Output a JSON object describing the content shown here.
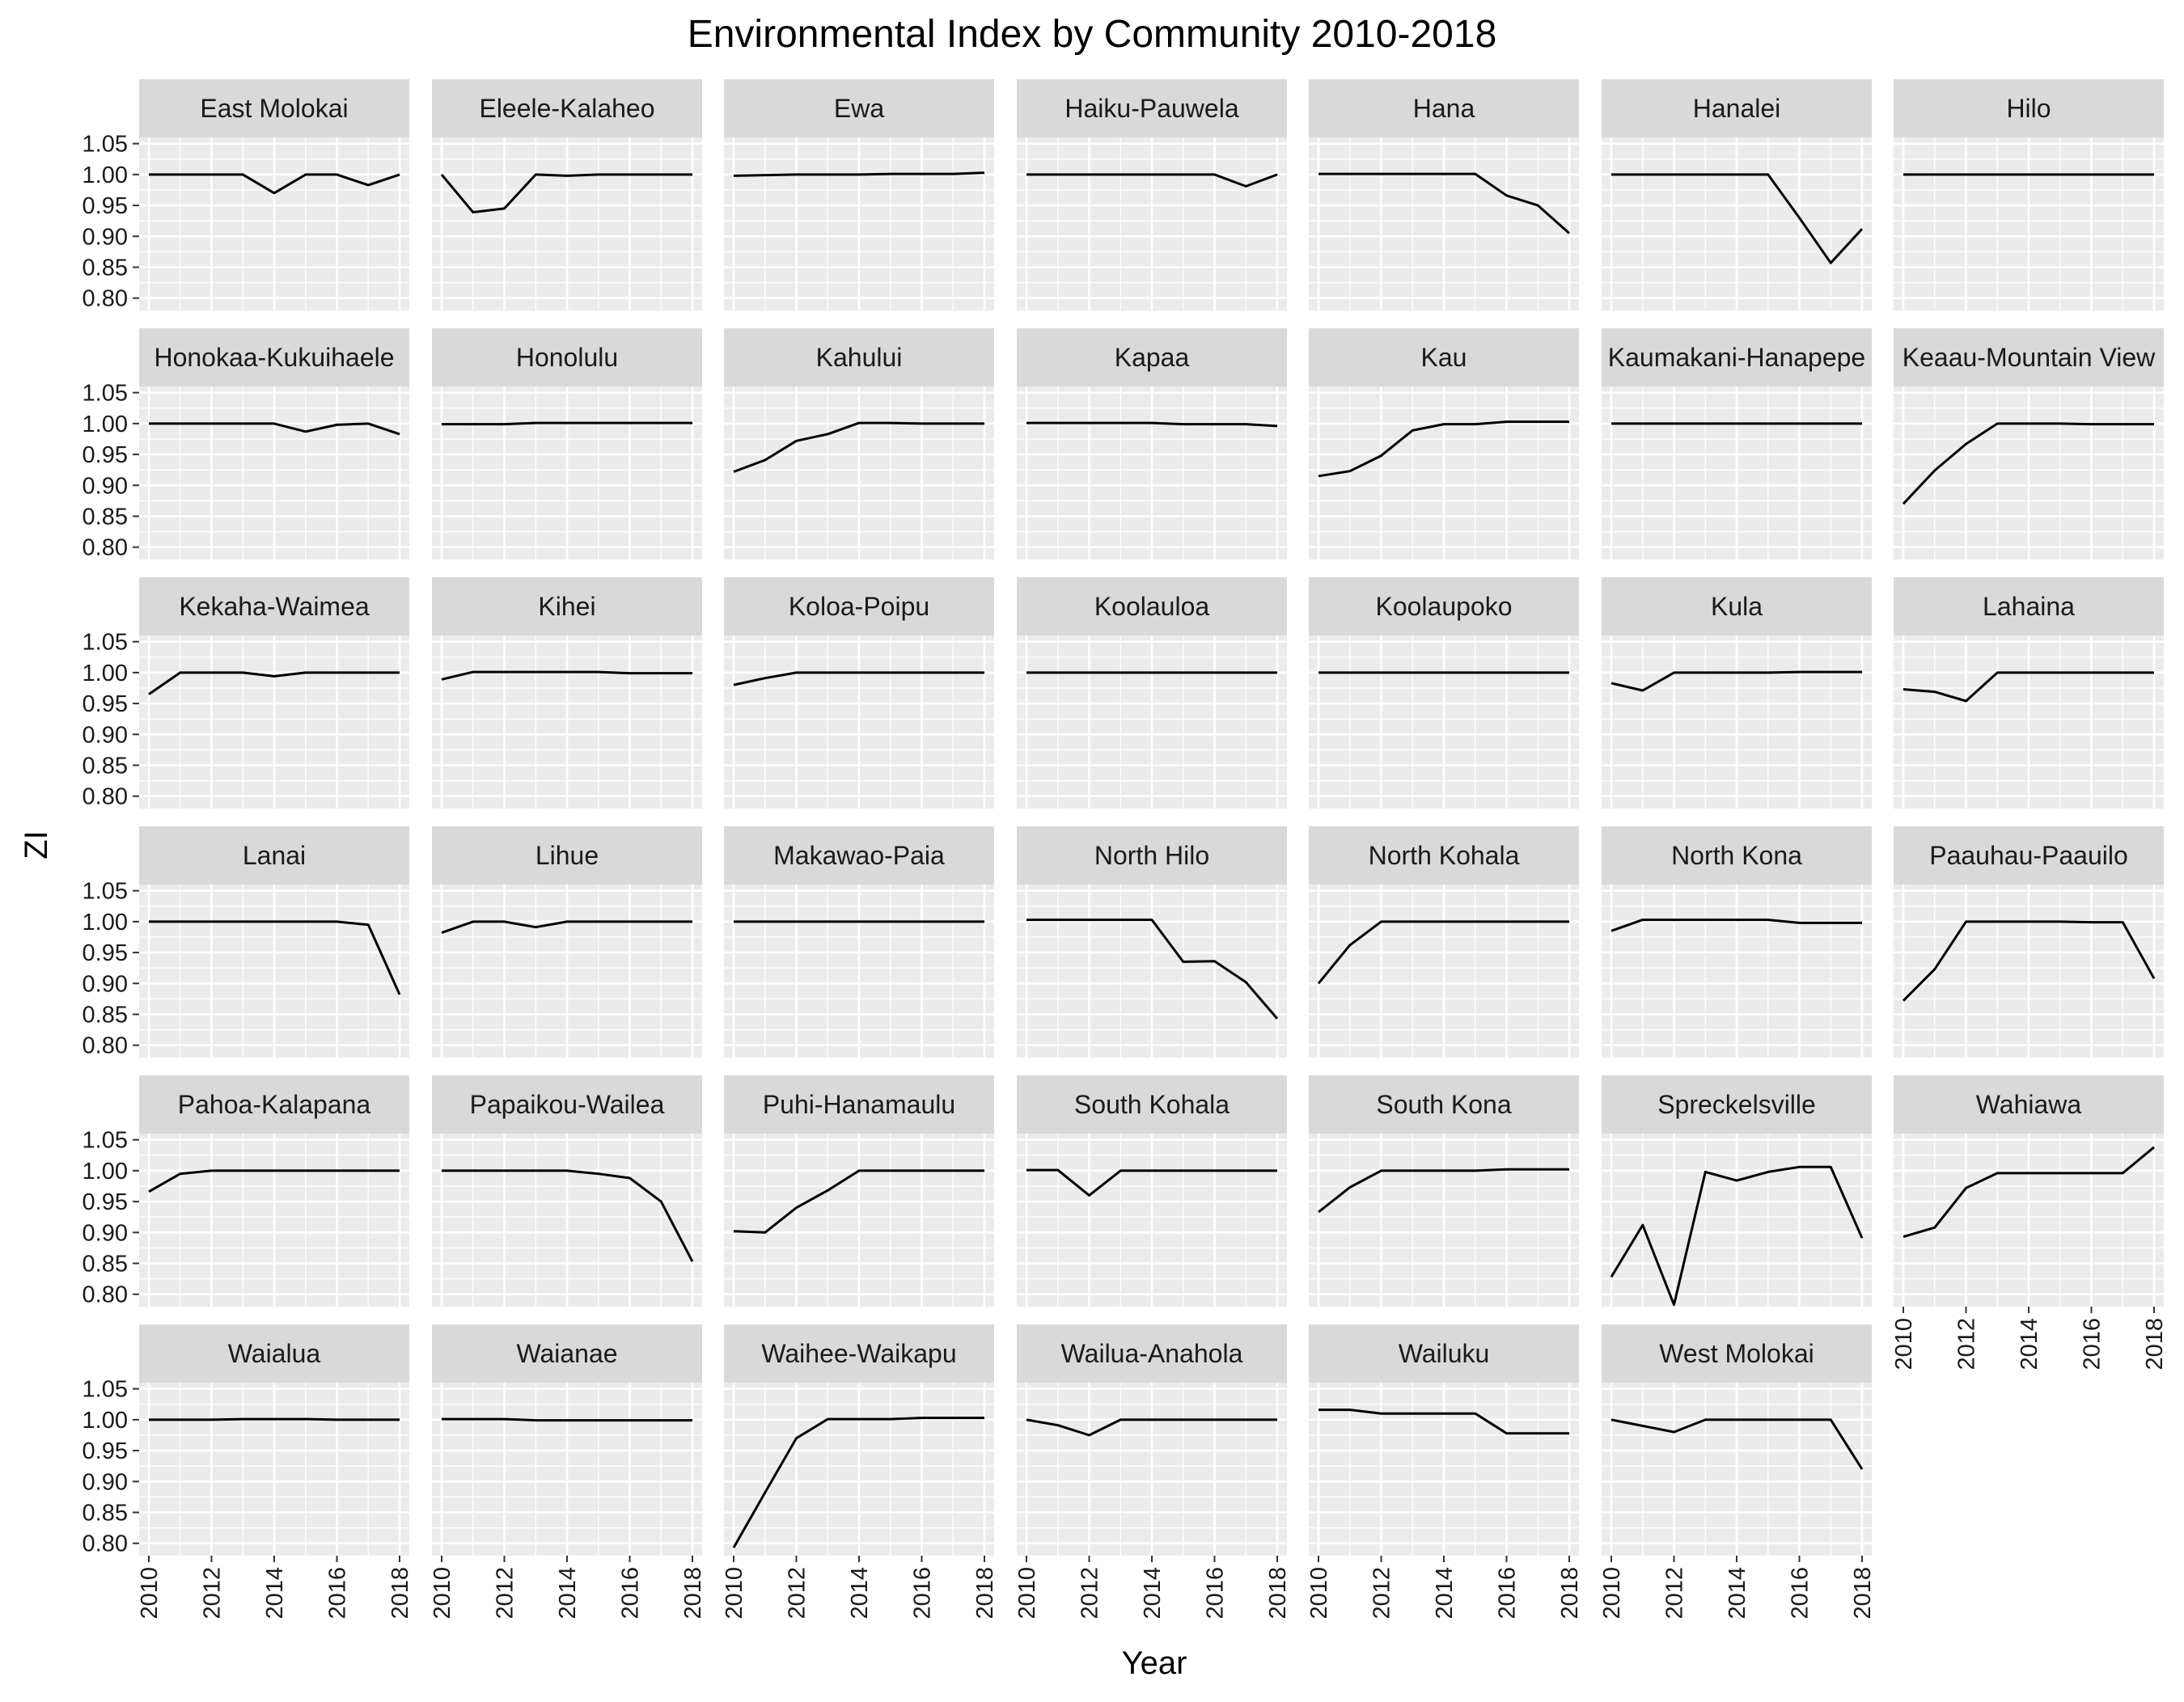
{
  "chart_data": {
    "type": "line",
    "title": "Environmental Index by Community 2010-2018",
    "xlabel": "Year",
    "ylabel": "ZI",
    "ylim": [
      0.78,
      1.06
    ],
    "xlim": [
      2010,
      2018
    ],
    "x": [
      2010,
      2011,
      2012,
      2013,
      2014,
      2015,
      2016,
      2017,
      2018
    ],
    "x_ticks": [
      2010,
      2012,
      2014,
      2016,
      2018
    ],
    "x_tick_labels": [
      "2010",
      "2012",
      "2014",
      "2016",
      "2018"
    ],
    "y_ticks": [
      0.8,
      0.85,
      0.9,
      0.95,
      1.0,
      1.05
    ],
    "y_tick_labels": [
      "0.80",
      "0.85",
      "0.90",
      "0.95",
      "1.00",
      "1.05"
    ],
    "grid": true,
    "facets": [
      {
        "name": "East Molokai",
        "values": [
          1.0,
          1.0,
          1.0,
          1.0,
          0.97,
          1.0,
          1.0,
          0.983,
          1.0
        ]
      },
      {
        "name": "Eleele-Kalaheo",
        "values": [
          1.0,
          0.939,
          0.945,
          1.0,
          0.998,
          1.0,
          1.0,
          1.0,
          1.0
        ]
      },
      {
        "name": "Ewa",
        "values": [
          0.998,
          0.999,
          1.0,
          1.0,
          1.0,
          1.001,
          1.001,
          1.001,
          1.003
        ]
      },
      {
        "name": "Haiku-Pauwela",
        "values": [
          1.0,
          1.0,
          1.0,
          1.0,
          1.0,
          1.0,
          1.0,
          0.981,
          1.0
        ]
      },
      {
        "name": "Hana",
        "values": [
          1.001,
          1.001,
          1.001,
          1.001,
          1.001,
          1.001,
          0.966,
          0.95,
          0.905
        ]
      },
      {
        "name": "Hanalei",
        "values": [
          1.0,
          1.0,
          1.0,
          1.0,
          1.0,
          1.0,
          0.93,
          0.857,
          0.912
        ]
      },
      {
        "name": "Hilo",
        "values": [
          1.0,
          1.0,
          1.0,
          1.0,
          1.0,
          1.0,
          1.0,
          1.0,
          1.0
        ]
      },
      {
        "name": "Honokaa-Kukuihaele",
        "values": [
          1.0,
          1.0,
          1.0,
          1.0,
          1.0,
          0.987,
          0.998,
          1.0,
          0.983
        ]
      },
      {
        "name": "Honolulu",
        "values": [
          0.999,
          0.999,
          0.999,
          1.001,
          1.001,
          1.001,
          1.001,
          1.001,
          1.001
        ]
      },
      {
        "name": "Kahului",
        "values": [
          0.922,
          0.941,
          0.972,
          0.983,
          1.001,
          1.001,
          1.0,
          1.0,
          1.0
        ]
      },
      {
        "name": "Kapaa",
        "values": [
          1.001,
          1.001,
          1.001,
          1.001,
          1.001,
          0.999,
          0.999,
          0.999,
          0.996
        ]
      },
      {
        "name": "Kau",
        "values": [
          0.915,
          0.923,
          0.948,
          0.989,
          0.999,
          0.999,
          1.003,
          1.003,
          1.003
        ]
      },
      {
        "name": "Kaumakani-Hanapepe",
        "values": [
          1.0,
          1.0,
          1.0,
          1.0,
          1.0,
          1.0,
          1.0,
          1.0,
          1.0
        ]
      },
      {
        "name": "Keaau-Mountain View",
        "values": [
          0.87,
          0.924,
          0.967,
          1.0,
          1.0,
          1.0,
          0.999,
          0.999,
          0.999
        ]
      },
      {
        "name": "Kekaha-Waimea",
        "values": [
          0.965,
          1.0,
          1.0,
          1.0,
          0.994,
          1.0,
          1.0,
          1.0,
          1.0
        ]
      },
      {
        "name": "Kihei",
        "values": [
          0.989,
          1.001,
          1.001,
          1.001,
          1.001,
          1.001,
          0.999,
          0.999,
          0.999
        ]
      },
      {
        "name": "Koloa-Poipu",
        "values": [
          0.98,
          0.991,
          1.0,
          1.0,
          1.0,
          1.0,
          1.0,
          1.0,
          1.0
        ]
      },
      {
        "name": "Koolauloa",
        "values": [
          1.0,
          1.0,
          1.0,
          1.0,
          1.0,
          1.0,
          1.0,
          1.0,
          1.0
        ]
      },
      {
        "name": "Koolaupoko",
        "values": [
          1.0,
          1.0,
          1.0,
          1.0,
          1.0,
          1.0,
          1.0,
          1.0,
          1.0
        ]
      },
      {
        "name": "Kula",
        "values": [
          0.983,
          0.971,
          1.0,
          1.0,
          1.0,
          1.0,
          1.001,
          1.001,
          1.001
        ]
      },
      {
        "name": "Lahaina",
        "values": [
          0.973,
          0.969,
          0.954,
          1.0,
          1.0,
          1.0,
          1.0,
          1.0,
          1.0
        ]
      },
      {
        "name": "Lanai",
        "values": [
          1.0,
          1.0,
          1.0,
          1.0,
          1.0,
          1.0,
          1.0,
          0.995,
          0.882
        ]
      },
      {
        "name": "Lihue",
        "values": [
          0.982,
          1.0,
          1.0,
          0.991,
          1.0,
          1.0,
          1.0,
          1.0,
          1.0
        ]
      },
      {
        "name": "Makawao-Paia",
        "values": [
          1.0,
          1.0,
          1.0,
          1.0,
          1.0,
          1.0,
          1.0,
          1.0,
          1.0
        ]
      },
      {
        "name": "North Hilo",
        "values": [
          1.003,
          1.003,
          1.003,
          1.003,
          1.003,
          0.935,
          0.936,
          0.902,
          0.843
        ]
      },
      {
        "name": "North Kohala",
        "values": [
          0.9,
          0.962,
          1.0,
          1.0,
          1.0,
          1.0,
          1.0,
          1.0,
          1.0
        ]
      },
      {
        "name": "North Kona",
        "values": [
          0.985,
          1.003,
          1.003,
          1.003,
          1.003,
          1.003,
          0.998,
          0.998,
          0.998
        ]
      },
      {
        "name": "Paauhau-Paauilo",
        "values": [
          0.872,
          0.923,
          1.0,
          1.0,
          1.0,
          1.0,
          0.999,
          0.999,
          0.908
        ]
      },
      {
        "name": "Pahoa-Kalapana",
        "values": [
          0.966,
          0.995,
          1.0,
          1.0,
          1.0,
          1.0,
          1.0,
          1.0,
          1.0
        ]
      },
      {
        "name": "Papaikou-Wailea",
        "values": [
          1.0,
          1.0,
          1.0,
          1.0,
          1.0,
          0.995,
          0.988,
          0.95,
          0.853
        ]
      },
      {
        "name": "Puhi-Hanamaulu",
        "values": [
          0.902,
          0.9,
          0.94,
          0.968,
          1.0,
          1.0,
          1.0,
          1.0,
          1.0
        ]
      },
      {
        "name": "South Kohala",
        "values": [
          1.001,
          1.001,
          0.96,
          1.0,
          1.0,
          1.0,
          1.0,
          1.0,
          1.0
        ]
      },
      {
        "name": "South Kona",
        "values": [
          0.933,
          0.973,
          1.0,
          1.0,
          1.0,
          1.0,
          1.002,
          1.002,
          1.002
        ]
      },
      {
        "name": "Spreckelsville",
        "values": [
          0.828,
          0.912,
          0.783,
          0.998,
          0.984,
          0.998,
          1.006,
          1.006,
          0.891
        ]
      },
      {
        "name": "Wahiawa",
        "values": [
          0.893,
          0.908,
          0.972,
          0.996,
          0.996,
          0.996,
          0.996,
          0.996,
          1.038
        ]
      },
      {
        "name": "Waialua",
        "values": [
          1.0,
          1.0,
          1.0,
          1.001,
          1.001,
          1.001,
          1.0,
          1.0,
          1.0
        ]
      },
      {
        "name": "Waianae",
        "values": [
          1.001,
          1.001,
          1.001,
          0.999,
          0.999,
          0.999,
          0.999,
          0.999,
          0.999
        ]
      },
      {
        "name": "Waihee-Waikapu",
        "values": [
          0.793,
          0.882,
          0.97,
          1.001,
          1.001,
          1.001,
          1.003,
          1.003,
          1.003
        ]
      },
      {
        "name": "Wailua-Anahola",
        "values": [
          1.0,
          0.991,
          0.975,
          1.0,
          1.0,
          1.0,
          1.0,
          1.0,
          1.0
        ]
      },
      {
        "name": "Wailuku",
        "values": [
          1.016,
          1.016,
          1.01,
          1.01,
          1.01,
          1.01,
          0.978,
          0.978,
          0.978
        ]
      },
      {
        "name": "West Molokai",
        "values": [
          1.0,
          0.99,
          0.98,
          1.0,
          1.0,
          1.0,
          1.0,
          1.0,
          0.92
        ]
      }
    ],
    "colors": {
      "panel_background": "#ebebeb",
      "strip_background": "#d9d9d9",
      "grid_major": "#ffffff",
      "line": "#000000",
      "text": "#000000",
      "tick_label": "#4d4d4d"
    }
  }
}
